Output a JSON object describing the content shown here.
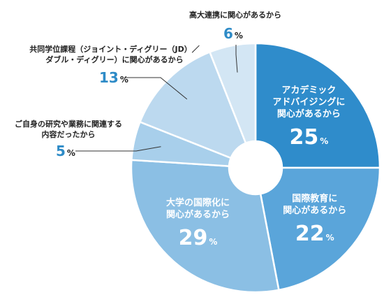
{
  "chart_data": {
    "type": "pie",
    "donut": true,
    "unit": "%",
    "slices": [
      {
        "label_lines": [
          "アカデミック",
          "アドバイジングに",
          "関心があるから"
        ],
        "value": 25,
        "color": "#2f8ccb"
      },
      {
        "label_lines": [
          "国際教育に",
          "関心があるから"
        ],
        "value": 22,
        "color": "#5aa5da"
      },
      {
        "label_lines": [
          "大学の国際化に",
          "関心があるから"
        ],
        "value": 29,
        "color": "#8bbfe4"
      },
      {
        "label_lines": [
          "ご自身の研究や業務に関連する",
          "内容だったから"
        ],
        "value": 5,
        "color": "#a8cfeb"
      },
      {
        "label_lines": [
          "共同学位課程（ジョイント・ディグリー（JD）／",
          "ダブル・ディグリー）に関心があるから"
        ],
        "value": 13,
        "color": "#bcd9ef"
      },
      {
        "label_lines": [
          "高大連携に関心があるから"
        ],
        "value": 6,
        "color": "#d3e6f4"
      }
    ]
  }
}
